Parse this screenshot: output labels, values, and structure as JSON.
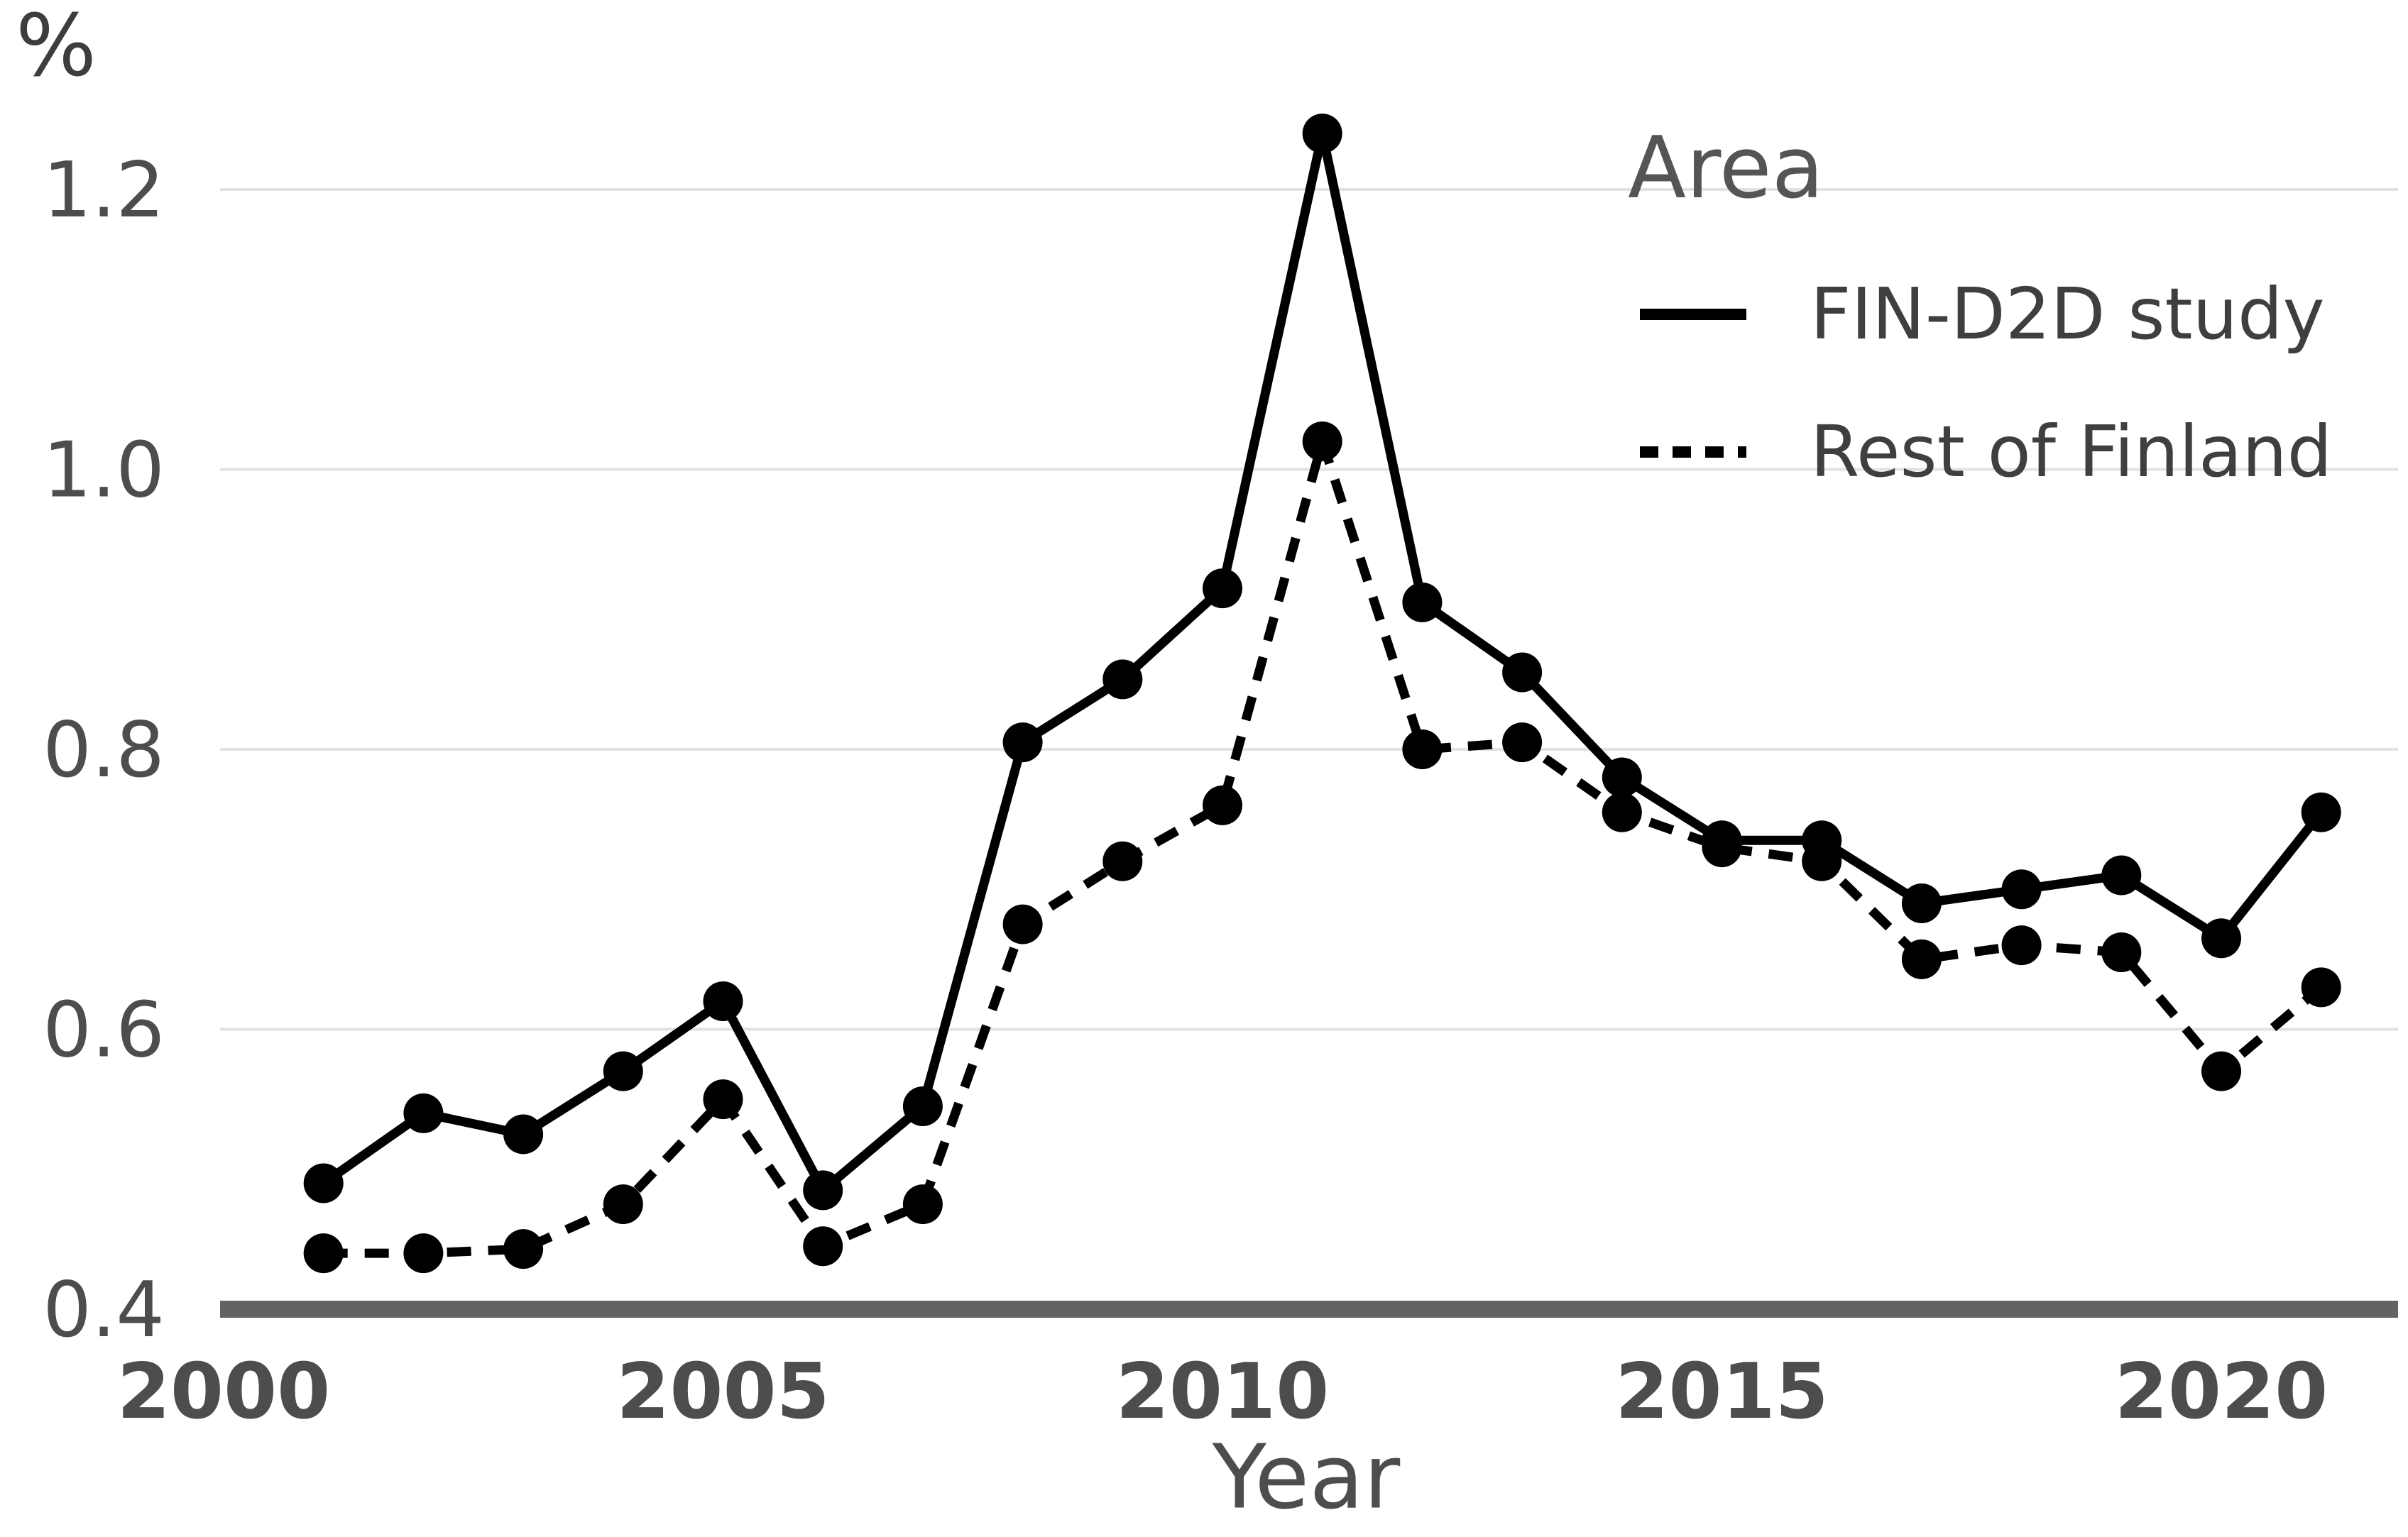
{
  "figure": {
    "y_axis_title": "%",
    "x_axis_title": "Year"
  },
  "legend": {
    "title": "Area",
    "items": [
      {
        "label": "FIN-D2D study",
        "line_style": "solid"
      },
      {
        "label": "Rest of Finland",
        "line_style": "dashed"
      }
    ]
  },
  "colors": {
    "series": "#000000",
    "tick_text": "#4d4d4d",
    "axis_title_text": "#4d4d4d",
    "legend_title_text": "#555555",
    "legend_label_text": "#3f3f3f",
    "gridline": "#e2e2e2",
    "axis_line": "#636363",
    "background": "#ffffff"
  },
  "chart_data": {
    "type": "line",
    "title": "",
    "xlabel": "Year",
    "ylabel": "%",
    "x": [
      2001,
      2002,
      2003,
      2004,
      2005,
      2006,
      2007,
      2008,
      2009,
      2010,
      2011,
      2012,
      2013,
      2014,
      2015,
      2016,
      2017,
      2018,
      2019,
      2020,
      2021
    ],
    "series": [
      {
        "name": "FIN-D2D study",
        "style": "solid",
        "marker": "circle",
        "values": [
          0.49,
          0.54,
          0.525,
          0.57,
          0.62,
          0.485,
          0.545,
          0.805,
          0.85,
          0.915,
          1.24,
          0.905,
          0.855,
          0.78,
          0.735,
          0.735,
          0.69,
          0.7,
          0.71,
          0.665,
          0.755
        ]
      },
      {
        "name": "Rest of Finland",
        "style": "dashed",
        "marker": "circle",
        "values": [
          0.44,
          0.44,
          0.443,
          0.475,
          0.55,
          0.445,
          0.475,
          0.675,
          0.72,
          0.76,
          1.02,
          0.8,
          0.805,
          0.755,
          0.73,
          0.72,
          0.65,
          0.66,
          0.655,
          0.57,
          0.63
        ]
      }
    ],
    "xticks": [
      2000,
      2005,
      2010,
      2015,
      2020
    ],
    "yticks": [
      0.4,
      0.6,
      0.8,
      1.0,
      1.2
    ],
    "ylim": [
      0.4,
      1.27
    ],
    "xlim": [
      2000,
      2021.8
    ],
    "grid": "horizontal-major-only",
    "legend_title": "Area",
    "legend_position": "inside-top-right"
  }
}
